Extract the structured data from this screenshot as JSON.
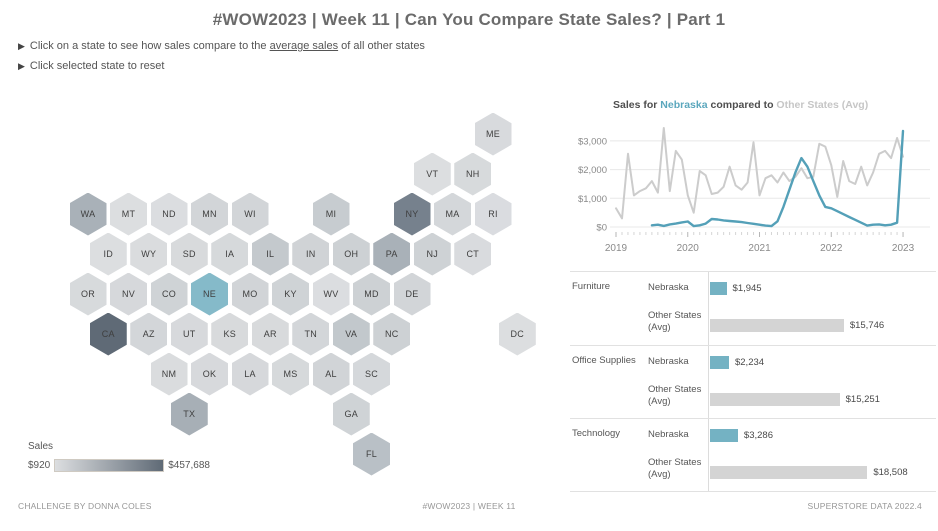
{
  "header": {
    "title": "#WOW2023  | Week 11 |  Can You Compare State Sales? | Part 1",
    "instructions": [
      {
        "bullet": "▶",
        "pre": "Click on a state to see how sales compare to the ",
        "underlined": "average sales",
        "post": " of all other states"
      },
      {
        "bullet": "▶",
        "pre": "Click selected state to reset",
        "underlined": "",
        "post": ""
      }
    ]
  },
  "hex_map": {
    "selected_state": "NE",
    "selected_color": "#85bac9",
    "legend": {
      "title": "Sales",
      "min": "$920",
      "max": "$457,688",
      "gradient_from": "#dcdee0",
      "gradient_to": "#5f6a76"
    },
    "states": [
      {
        "abbr": "ME",
        "col": 10,
        "row": 0,
        "color": "#d8dadd"
      },
      {
        "abbr": "VT",
        "col": 8.5,
        "row": 1,
        "color": "#dcdee0"
      },
      {
        "abbr": "NH",
        "col": 9.5,
        "row": 1,
        "color": "#d7dadc"
      },
      {
        "abbr": "WA",
        "col": 0,
        "row": 2,
        "color": "#a9b1b8"
      },
      {
        "abbr": "MT",
        "col": 1,
        "row": 2,
        "color": "#dcdee0"
      },
      {
        "abbr": "ND",
        "col": 2,
        "row": 2,
        "color": "#dbdde0"
      },
      {
        "abbr": "MN",
        "col": 3,
        "row": 2,
        "color": "#d2d5d8"
      },
      {
        "abbr": "WI",
        "col": 4,
        "row": 2,
        "color": "#d2d5d8"
      },
      {
        "abbr": "MI",
        "col": 6,
        "row": 2,
        "color": "#c7ccd0"
      },
      {
        "abbr": "NY",
        "col": 8,
        "row": 2,
        "color": "#76818d"
      },
      {
        "abbr": "MA",
        "col": 9,
        "row": 2,
        "color": "#d4d7da"
      },
      {
        "abbr": "RI",
        "col": 10,
        "row": 2,
        "color": "#dadce0"
      },
      {
        "abbr": "ID",
        "col": 0.5,
        "row": 3,
        "color": "#dcdee0"
      },
      {
        "abbr": "WY",
        "col": 1.5,
        "row": 3,
        "color": "#dadcde"
      },
      {
        "abbr": "SD",
        "col": 2.5,
        "row": 3,
        "color": "#d8dadc"
      },
      {
        "abbr": "IA",
        "col": 3.5,
        "row": 3,
        "color": "#d6d9db"
      },
      {
        "abbr": "IL",
        "col": 4.5,
        "row": 3,
        "color": "#c4c9cd"
      },
      {
        "abbr": "IN",
        "col": 5.5,
        "row": 3,
        "color": "#d0d3d6"
      },
      {
        "abbr": "OH",
        "col": 6.5,
        "row": 3,
        "color": "#cdd1d4"
      },
      {
        "abbr": "PA",
        "col": 7.5,
        "row": 3,
        "color": "#a9b1b8"
      },
      {
        "abbr": "NJ",
        "col": 8.5,
        "row": 3,
        "color": "#ced2d5"
      },
      {
        "abbr": "CT",
        "col": 9.5,
        "row": 3,
        "color": "#d9dbde"
      },
      {
        "abbr": "OR",
        "col": 0,
        "row": 4,
        "color": "#d7dadc"
      },
      {
        "abbr": "NV",
        "col": 1,
        "row": 4,
        "color": "#d6d8db"
      },
      {
        "abbr": "CO",
        "col": 2,
        "row": 4,
        "color": "#cfd3d6"
      },
      {
        "abbr": "NE",
        "col": 3,
        "row": 4,
        "color": "#85bac9"
      },
      {
        "abbr": "MO",
        "col": 4,
        "row": 4,
        "color": "#d1d4d7"
      },
      {
        "abbr": "KY",
        "col": 5,
        "row": 4,
        "color": "#cfd3d6"
      },
      {
        "abbr": "WV",
        "col": 6,
        "row": 4,
        "color": "#dbdde0"
      },
      {
        "abbr": "MD",
        "col": 7,
        "row": 4,
        "color": "#cdd1d4"
      },
      {
        "abbr": "DE",
        "col": 8,
        "row": 4,
        "color": "#d2d5d8"
      },
      {
        "abbr": "CA",
        "col": 0.5,
        "row": 5,
        "color": "#5f6a76"
      },
      {
        "abbr": "AZ",
        "col": 1.5,
        "row": 5,
        "color": "#d3d6d9"
      },
      {
        "abbr": "UT",
        "col": 2.5,
        "row": 5,
        "color": "#d7d9dc"
      },
      {
        "abbr": "KS",
        "col": 3.5,
        "row": 5,
        "color": "#d8dadc"
      },
      {
        "abbr": "AR",
        "col": 4.5,
        "row": 5,
        "color": "#d8dadc"
      },
      {
        "abbr": "TN",
        "col": 5.5,
        "row": 5,
        "color": "#d3d6d9"
      },
      {
        "abbr": "VA",
        "col": 6.5,
        "row": 5,
        "color": "#c2c8cc"
      },
      {
        "abbr": "NC",
        "col": 7.5,
        "row": 5,
        "color": "#cdd1d4"
      },
      {
        "abbr": "DC",
        "col": 10.6,
        "row": 5,
        "color": "#dcdee0"
      },
      {
        "abbr": "NM",
        "col": 2,
        "row": 6,
        "color": "#dadcde"
      },
      {
        "abbr": "OK",
        "col": 3,
        "row": 6,
        "color": "#d7d9dc"
      },
      {
        "abbr": "LA",
        "col": 4,
        "row": 6,
        "color": "#d6d8db"
      },
      {
        "abbr": "MS",
        "col": 5,
        "row": 6,
        "color": "#d6d9db"
      },
      {
        "abbr": "AL",
        "col": 6,
        "row": 6,
        "color": "#d1d4d7"
      },
      {
        "abbr": "SC",
        "col": 7,
        "row": 6,
        "color": "#d5d8db"
      },
      {
        "abbr": "TX",
        "col": 2.5,
        "row": 7,
        "color": "#a7afb6"
      },
      {
        "abbr": "GA",
        "col": 6.5,
        "row": 7,
        "color": "#cfd3d6"
      },
      {
        "abbr": "FL",
        "col": 7,
        "row": 8,
        "color": "#b9c0c6"
      }
    ]
  },
  "chart_data": [
    {
      "type": "line",
      "title_parts": [
        {
          "text": "Sales for ",
          "color": "#4e4e4e"
        },
        {
          "text": "Nebraska",
          "color": "#5ba7bd"
        },
        {
          "text": " compared to ",
          "color": "#4e4e4e"
        },
        {
          "text": "Other States (Avg)",
          "color": "#c6c6c6"
        }
      ],
      "x_start": "2019-01",
      "x_end": "2023-01",
      "interval": "month",
      "x_tick_labels": [
        "2019",
        "2020",
        "2021",
        "2022",
        "2023"
      ],
      "y_tick_labels": [
        "$0",
        "$1,000",
        "$2,000",
        "$3,000"
      ],
      "y_tick_values": [
        0,
        1000,
        2000,
        3000
      ],
      "ylim": [
        0,
        3500
      ],
      "grid": true,
      "series": [
        {
          "name": "Other States (Avg)",
          "color": "#cccccc",
          "values": [
            650,
            300,
            2550,
            1100,
            1250,
            1350,
            1600,
            1200,
            3450,
            1250,
            2650,
            2350,
            1100,
            500,
            1950,
            1800,
            1150,
            1200,
            1400,
            2100,
            1450,
            1300,
            1550,
            2950,
            1100,
            1700,
            1800,
            1550,
            1900,
            1600,
            1750,
            2050,
            1700,
            1750,
            2900,
            2800,
            2150,
            1050,
            2300,
            1600,
            1500,
            2100,
            1450,
            1900,
            2550,
            2650,
            2400,
            3100,
            2450
          ]
        },
        {
          "name": "Nebraska",
          "color": "#54a0b8",
          "values": [
            null,
            null,
            null,
            null,
            null,
            null,
            60,
            80,
            40,
            90,
            120,
            160,
            190,
            30,
            60,
            120,
            280,
            260,
            230,
            210,
            190,
            170,
            140,
            110,
            80,
            50,
            30,
            200,
            700,
            1300,
            1900,
            2400,
            2100,
            1600,
            1100,
            700,
            650,
            550,
            450,
            350,
            250,
            150,
            50,
            80,
            90,
            60,
            80,
            150,
            3350
          ]
        }
      ]
    },
    {
      "type": "bar",
      "categories": [
        "Furniture",
        "Office Supplies",
        "Technology"
      ],
      "series": [
        {
          "name": "Nebraska",
          "color": "#74b2c3",
          "values": [
            1945,
            2234,
            3286
          ],
          "labels": [
            "$1,945",
            "$2,234",
            "$3,286"
          ]
        },
        {
          "name": "Other States (Avg)",
          "color": "#d4d4d4",
          "values": [
            15746,
            15251,
            18508
          ],
          "labels": [
            "$15,746",
            "$15,251",
            "$18,508"
          ]
        }
      ]
    }
  ],
  "footer": {
    "left": "CHALLENGE BY DONNA COLES",
    "center": "#WOW2023 | WEEK 11",
    "right": "SUPERSTORE DATA 2022.4"
  }
}
